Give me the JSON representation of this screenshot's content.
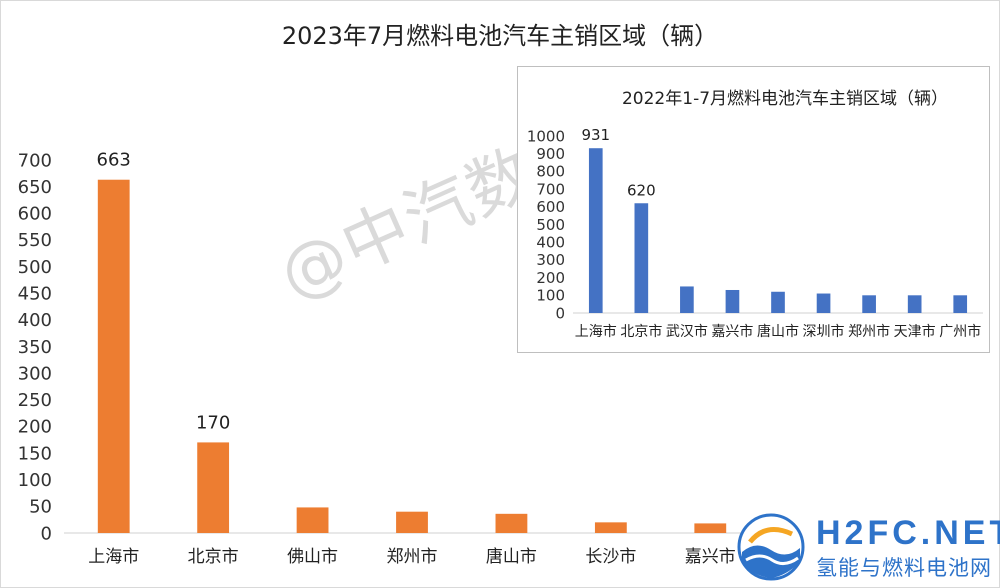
{
  "chart_data": [
    {
      "type": "bar",
      "title": "2023年7月燃料电池汽车主销区域（辆）",
      "categories": [
        "上海市",
        "北京市",
        "佛山市",
        "郑州市",
        "唐山市",
        "长沙市",
        "嘉兴市"
      ],
      "values": [
        663,
        170,
        48,
        40,
        36,
        20,
        18
      ],
      "data_labels": [
        "663",
        "170",
        "",
        "",
        "",
        "",
        ""
      ],
      "yticks": [
        "0",
        "50",
        "100",
        "150",
        "200",
        "250",
        "300",
        "350",
        "400",
        "450",
        "500",
        "550",
        "600",
        "650",
        "700"
      ],
      "ylim": [
        0,
        700
      ],
      "bar_color": "#ed7d31",
      "grid": false
    },
    {
      "type": "bar",
      "title": "2022年1-7月燃料电池汽车主销区域（辆）",
      "categories": [
        "上海市",
        "北京市",
        "武汉市",
        "嘉兴市",
        "唐山市",
        "深圳市",
        "郑州市",
        "天津市",
        "广州市"
      ],
      "values": [
        931,
        620,
        150,
        130,
        120,
        110,
        100,
        100,
        100
      ],
      "data_labels": [
        "931",
        "620",
        "",
        "",
        "",
        "",
        "",
        "",
        ""
      ],
      "yticks": [
        "0",
        "100",
        "200",
        "300",
        "400",
        "500",
        "600",
        "700",
        "800",
        "900",
        "1000"
      ],
      "ylim": [
        0,
        1000
      ],
      "bar_color": "#4472c4",
      "grid": false,
      "legend": "none"
    }
  ],
  "watermark": "@中汽数据",
  "logo": {
    "name": "H2FC.NET",
    "subtitle": "氢能与燃料电池网"
  }
}
